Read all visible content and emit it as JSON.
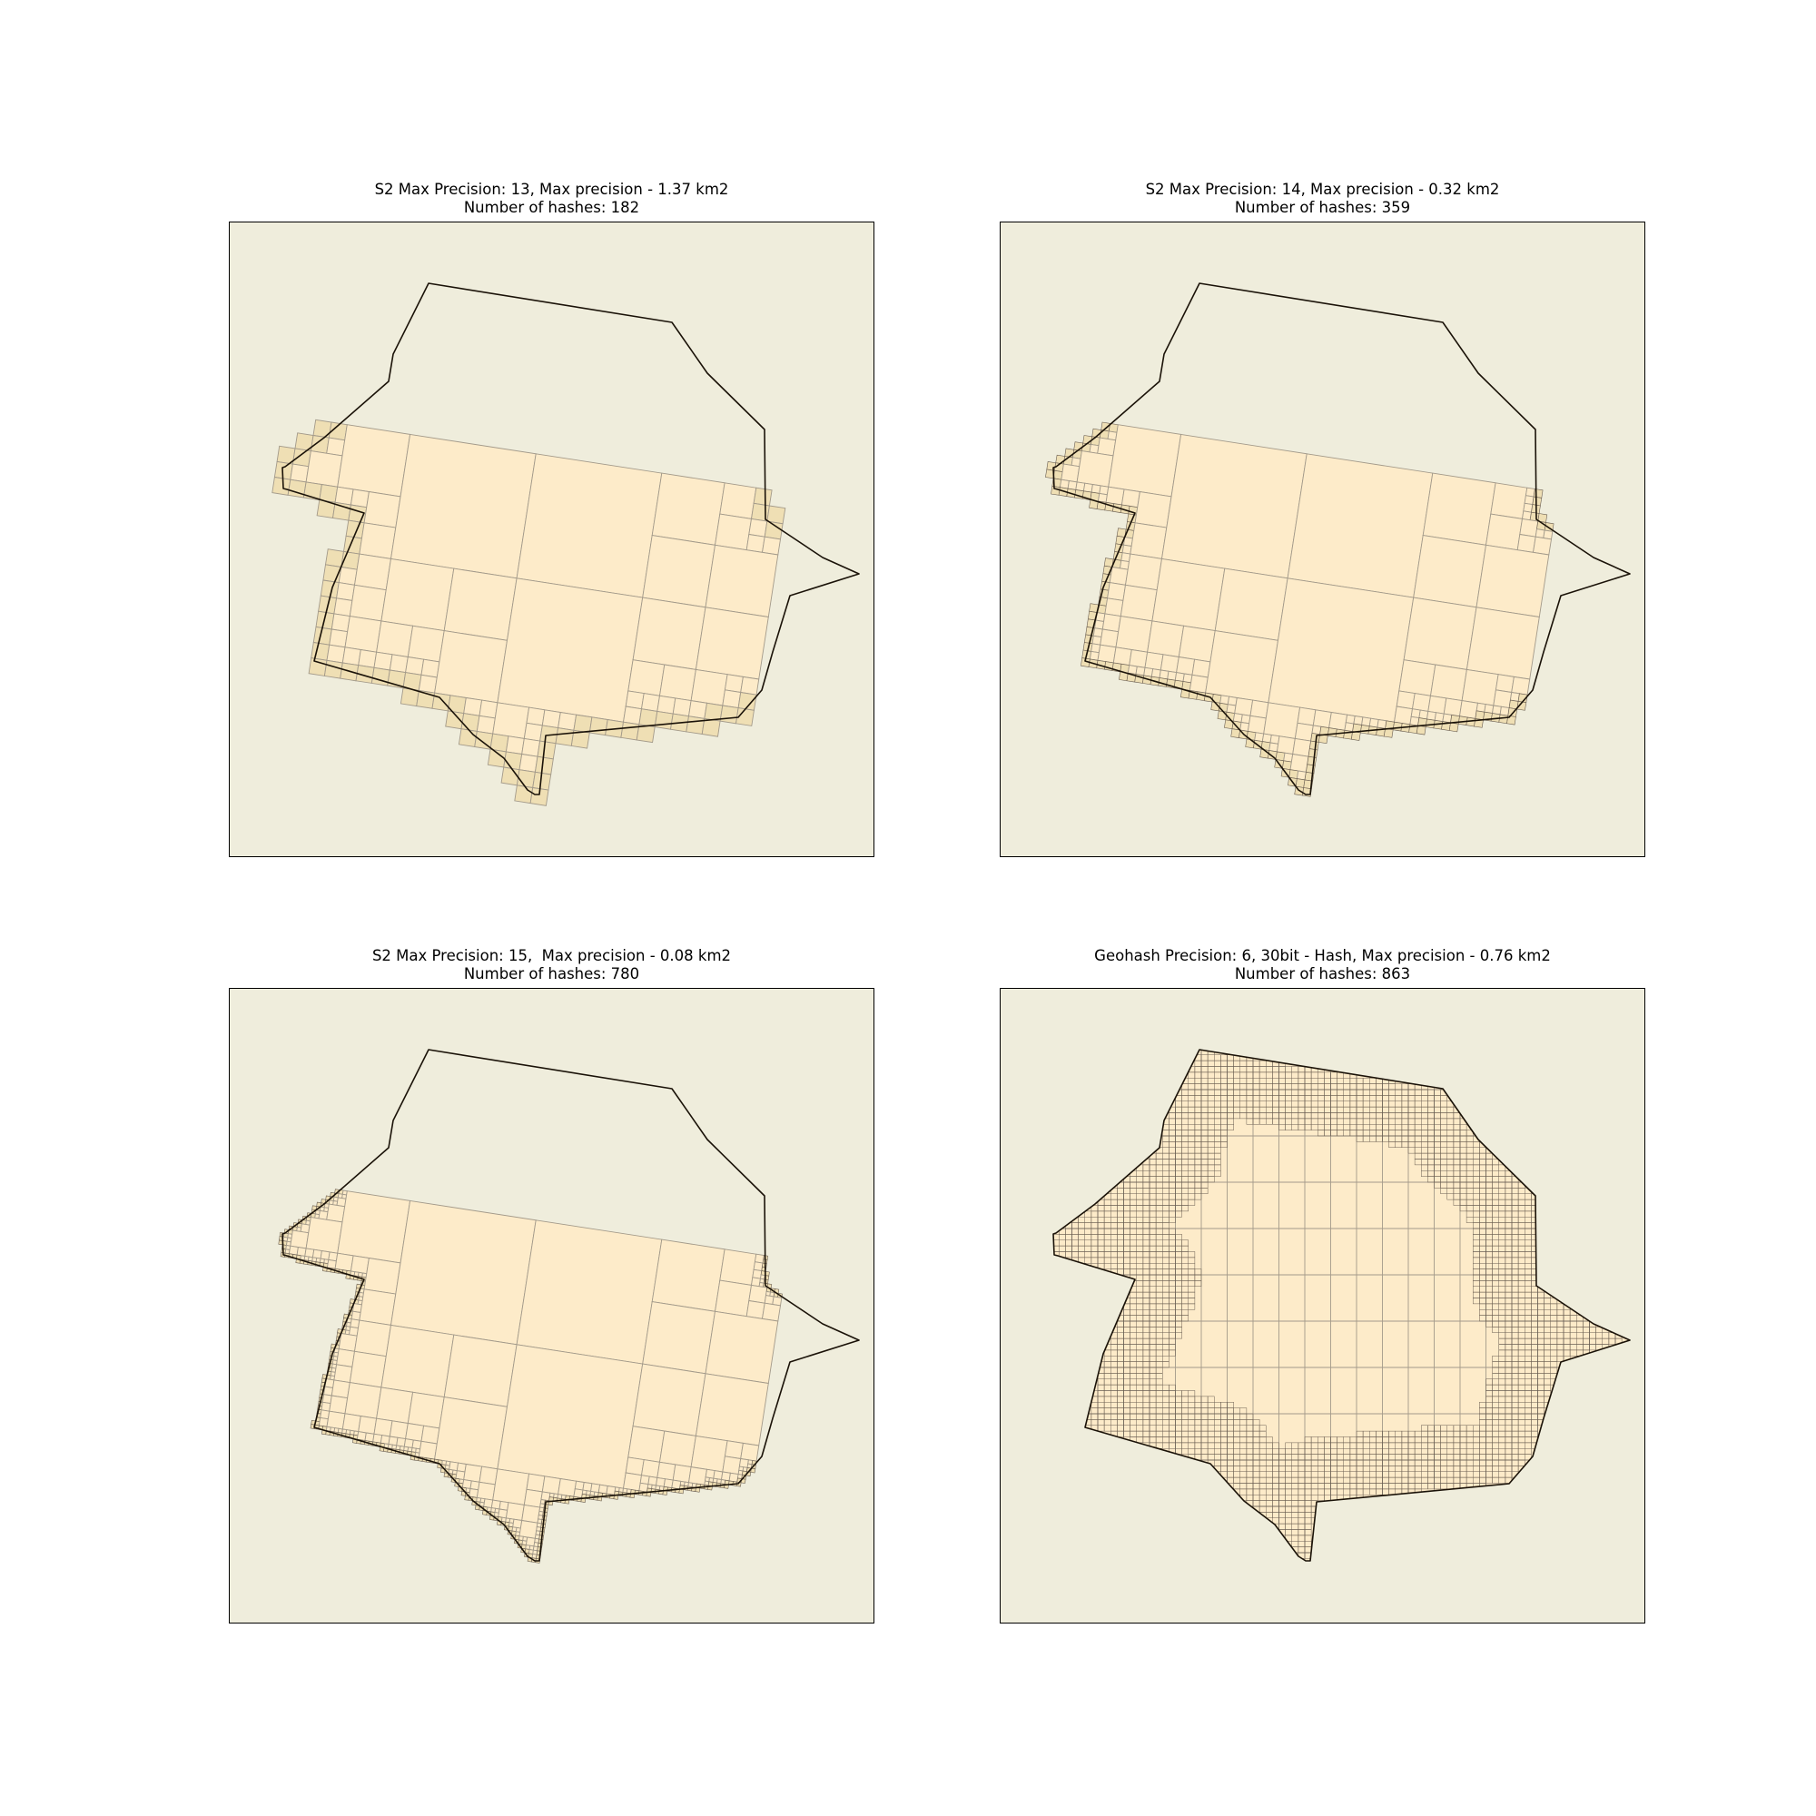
{
  "figure": {
    "panels": [
      {
        "title_line1": "S2 Max Precision: 13, Max precision - 1.37 km2",
        "title_line2": "Number of hashes: 182"
      },
      {
        "title_line1": "S2 Max Precision: 14, Max precision - 0.32 km2",
        "title_line2": "Number of hashes: 359"
      },
      {
        "title_line1": "S2 Max Precision: 15,  Max precision - 0.08 km2",
        "title_line2": "Number of hashes: 780"
      },
      {
        "title_line1": "Geohash Precision: 6, 30bit - Hash, Max precision - 0.76 km2",
        "title_line2": "Number of hashes: 863"
      }
    ]
  },
  "colors": {
    "map_background": "#efeddc",
    "cell_fill": "#fdebc9",
    "edge_cell_fill": "#efdcad",
    "cell_edge": "#a39a8a",
    "fine_cell_edge": "#6b5f52",
    "polygon_outline": "#1a1208"
  },
  "chart_data": {
    "type": "map",
    "shared_polygon": "same irregular polygon drawn in every panel",
    "panels": [
      {
        "kind": "S2",
        "max_precision": 13,
        "max_cell_area_km2": 1.37,
        "number_of_hashes": 182
      },
      {
        "kind": "S2",
        "max_precision": 14,
        "max_cell_area_km2": 0.32,
        "number_of_hashes": 359
      },
      {
        "kind": "S2",
        "max_precision": 15,
        "max_cell_area_km2": 0.08,
        "number_of_hashes": 780
      },
      {
        "kind": "Geohash",
        "precision": 6,
        "bits": 30,
        "max_cell_area_km2": 0.76,
        "number_of_hashes": 863
      }
    ]
  }
}
